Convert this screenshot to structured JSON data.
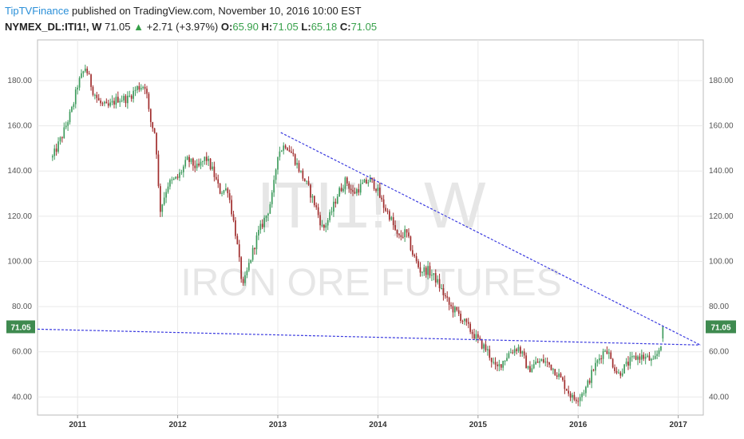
{
  "header": {
    "publisher": "TipTVFinance",
    "published_text": " published on TradingView.com, November 10, 2016 10:00 EST"
  },
  "ticker": {
    "symbol": "NYMEX_DL:ITI1!, W",
    "last": "71.05",
    "change": "+2.71 (+3.97%)",
    "open_label": "O:",
    "open": "65.90",
    "high_label": "H:",
    "high": "71.05",
    "low_label": "L:",
    "low": "65.18",
    "close_label": "C:",
    "close": "71.05"
  },
  "watermark": {
    "line1": "ITI1!, W",
    "line2": "IRON ORE FUTURES"
  },
  "price_tag": "71.05",
  "colors": {
    "up": "#3e9b5d",
    "down": "#a02d2d",
    "trendline": "#3a3adf",
    "tag": "#3e8a4f",
    "grid": "#e9e9e9"
  },
  "chart_data": {
    "type": "candlestick",
    "x_ticks": [
      "2011",
      "2012",
      "2013",
      "2014",
      "2015",
      "2016",
      "2017"
    ],
    "y_ticks": [
      "40.00",
      "60.00",
      "80.00",
      "100.00",
      "120.00",
      "140.00",
      "160.00",
      "180.00"
    ],
    "ylim": [
      32,
      198
    ],
    "xlim": [
      2010.6,
      2017.25
    ],
    "grid": true,
    "close_path": [
      [
        2010.75,
        146
      ],
      [
        2010.85,
        156
      ],
      [
        2010.95,
        168
      ],
      [
        2011.0,
        178
      ],
      [
        2011.08,
        186
      ],
      [
        2011.15,
        176
      ],
      [
        2011.22,
        170
      ],
      [
        2011.3,
        168
      ],
      [
        2011.4,
        172
      ],
      [
        2011.5,
        172
      ],
      [
        2011.6,
        177
      ],
      [
        2011.68,
        178
      ],
      [
        2011.72,
        163
      ],
      [
        2011.78,
        156
      ],
      [
        2011.82,
        122
      ],
      [
        2011.9,
        134
      ],
      [
        2012.0,
        137
      ],
      [
        2012.1,
        145
      ],
      [
        2012.2,
        141
      ],
      [
        2012.28,
        146
      ],
      [
        2012.35,
        140
      ],
      [
        2012.42,
        131
      ],
      [
        2012.5,
        132
      ],
      [
        2012.58,
        112
      ],
      [
        2012.65,
        88
      ],
      [
        2012.72,
        100
      ],
      [
        2012.8,
        112
      ],
      [
        2012.9,
        122
      ],
      [
        2012.95,
        130
      ],
      [
        2013.0,
        148
      ],
      [
        2013.08,
        152
      ],
      [
        2013.15,
        147
      ],
      [
        2013.22,
        140
      ],
      [
        2013.3,
        133
      ],
      [
        2013.38,
        124
      ],
      [
        2013.45,
        114
      ],
      [
        2013.52,
        120
      ],
      [
        2013.6,
        130
      ],
      [
        2013.68,
        136
      ],
      [
        2013.75,
        130
      ],
      [
        2013.85,
        134
      ],
      [
        2013.92,
        136
      ],
      [
        2013.98,
        133
      ],
      [
        2014.05,
        125
      ],
      [
        2014.12,
        120
      ],
      [
        2014.2,
        110
      ],
      [
        2014.28,
        113
      ],
      [
        2014.35,
        103
      ],
      [
        2014.42,
        96
      ],
      [
        2014.5,
        96
      ],
      [
        2014.58,
        92
      ],
      [
        2014.65,
        86
      ],
      [
        2014.72,
        80
      ],
      [
        2014.8,
        77
      ],
      [
        2014.88,
        72
      ],
      [
        2014.95,
        68
      ],
      [
        2015.02,
        64
      ],
      [
        2015.1,
        60
      ],
      [
        2015.18,
        52
      ],
      [
        2015.25,
        56
      ],
      [
        2015.32,
        60
      ],
      [
        2015.4,
        62
      ],
      [
        2015.45,
        58
      ],
      [
        2015.5,
        52
      ],
      [
        2015.58,
        55
      ],
      [
        2015.65,
        56
      ],
      [
        2015.72,
        54
      ],
      [
        2015.8,
        50
      ],
      [
        2015.88,
        44
      ],
      [
        2015.95,
        39
      ],
      [
        2016.0,
        40
      ],
      [
        2016.08,
        44
      ],
      [
        2016.15,
        52
      ],
      [
        2016.22,
        58
      ],
      [
        2016.28,
        62
      ],
      [
        2016.33,
        56
      ],
      [
        2016.4,
        50
      ],
      [
        2016.48,
        54
      ],
      [
        2016.55,
        57
      ],
      [
        2016.62,
        58
      ],
      [
        2016.7,
        57
      ],
      [
        2016.75,
        55
      ],
      [
        2016.8,
        60
      ],
      [
        2016.84,
        66
      ],
      [
        2016.86,
        71
      ]
    ],
    "trendlines": [
      {
        "x": [
          2013.03,
          2017.22
        ],
        "y": [
          157,
          63
        ]
      },
      {
        "x": [
          2010.6,
          2017.22
        ],
        "y": [
          70,
          63
        ]
      }
    ],
    "last_price": 71.05
  }
}
